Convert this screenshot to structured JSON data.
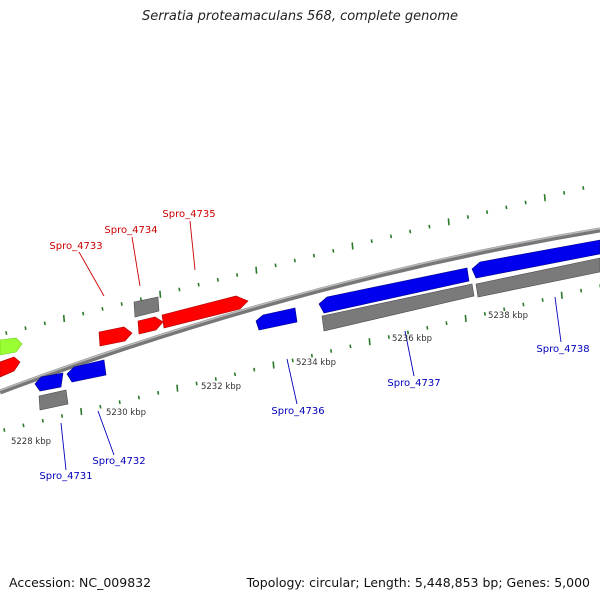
{
  "title": "Serratia proteamaculans 568, complete genome",
  "footer": {
    "accession": "Accession: NC_009832",
    "summary": "Topology: circular; Length: 5,448,853 bp; Genes: 5,000"
  },
  "colors": {
    "forward_gene": "#ff0000",
    "reverse_gene": "#0000ee",
    "other_feature": "#777777",
    "rna_feature": "#99ff33",
    "backbone": "#888888",
    "tick": "#2a7a2a",
    "forward_label": "#cc0000",
    "reverse_label": "#0000bb",
    "scale_label": "#333333"
  },
  "scale_labels": [
    "5228 kbp",
    "5230 kbp",
    "5232 kbp",
    "5234 kbp",
    "5236 kbp",
    "5238 kbp"
  ],
  "genes": [
    {
      "name": "Spro_4731",
      "strand": "reverse"
    },
    {
      "name": "Spro_4732",
      "strand": "reverse"
    },
    {
      "name": "Spro_4733",
      "strand": "forward"
    },
    {
      "name": "Spro_4734",
      "strand": "forward"
    },
    {
      "name": "Spro_4735",
      "strand": "forward"
    },
    {
      "name": "Spro_4736",
      "strand": "reverse"
    },
    {
      "name": "Spro_4737",
      "strand": "reverse"
    },
    {
      "name": "Spro_4738",
      "strand": "reverse"
    }
  ]
}
